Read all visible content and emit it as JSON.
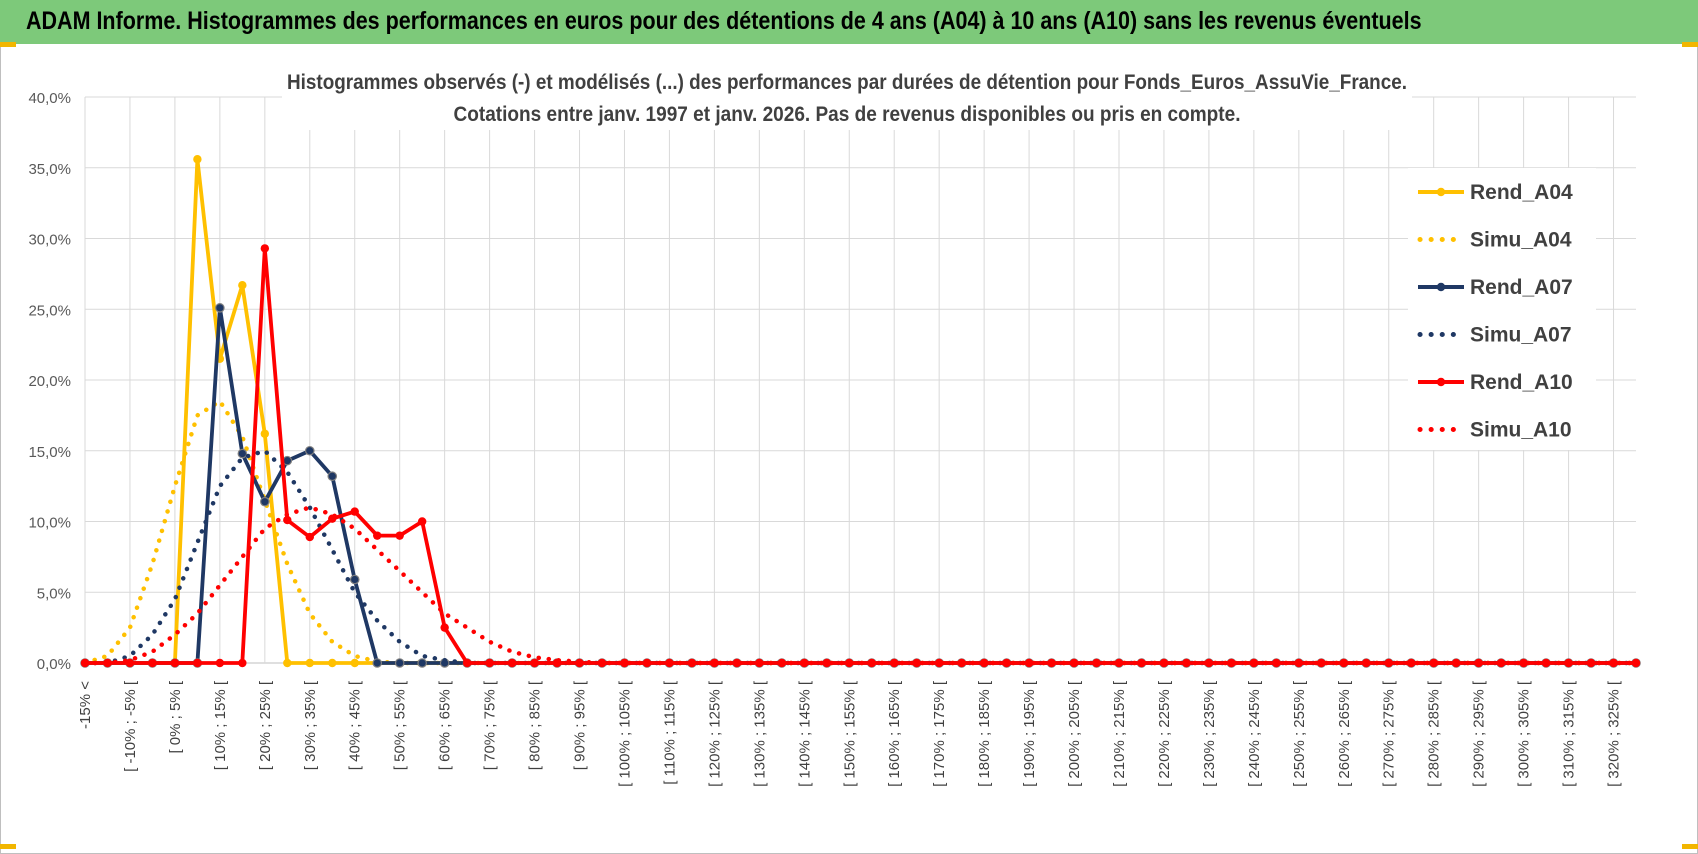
{
  "banner": {
    "title": "ADAM Informe. Histogrammes des performances en euros pour des détentions de 4 ans (A04) à 10 ans (A10) sans les revenus éventuels"
  },
  "chart_data": {
    "type": "line",
    "title": "Histogrammes observés (-) et modélisés (...) des performances par durées de détention pour Fonds_Euros_AssuVie_France.",
    "subtitle": "Cotations entre janv. 1997 et janv. 2026. Pas de revenus disponibles ou pris en compte.",
    "xlabel": "",
    "ylabel": "",
    "ylim": [
      0,
      40
    ],
    "y_ticks": [
      "0,0%",
      "5,0%",
      "10,0%",
      "15,0%",
      "20,0%",
      "25,0%",
      "30,0%",
      "35,0%",
      "40,0%"
    ],
    "grid": true,
    "legend_position": "right",
    "x_tick_labels": [
      "-15% <",
      "[ -10% ; -5% [",
      "[ 0% ; 5% [",
      "[ 10% ; 15% [",
      "[ 20% ; 25% [",
      "[ 30% ; 35% [",
      "[ 40% ; 45% [",
      "[ 50% ; 55% [",
      "[ 60% ; 65% [",
      "[ 70% ; 75% [",
      "[ 80% ; 85% [",
      "[ 90% ; 95% [",
      "[ 100% ; 105% [",
      "[ 110% ; 115% [",
      "[ 120% ; 125% [",
      "[ 130% ; 135% [",
      "[ 140% ; 145% [",
      "[ 150% ; 155% [",
      "[ 160% ; 165% [",
      "[ 170% ; 175% [",
      "[ 180% ; 185% [",
      "[ 190% ; 195% [",
      "[ 200% ; 205% [",
      "[ 210% ; 215% [",
      "[ 220% ; 225% [",
      "[ 230% ; 235% [",
      "[ 240% ; 245% [",
      "[ 250% ; 255% [",
      "[ 260% ; 265% [",
      "[ 270% ; 275% [",
      "[ 280% ; 285% [",
      "[ 290% ; 295% [",
      "[ 300% ; 305% [",
      "[ 310% ; 315% [",
      "[ 320% ; 325% ["
    ],
    "series": [
      {
        "name": "Rend_A04",
        "color": "#ffc000",
        "style": "solid",
        "markers": true,
        "values": [
          0,
          0,
          0,
          0,
          0,
          35.6,
          21.5,
          26.7,
          16.2,
          0,
          0,
          0,
          0,
          0,
          0,
          0,
          0,
          0,
          0,
          0,
          0,
          0,
          0,
          0,
          0,
          0,
          0,
          0,
          0,
          0,
          0,
          0,
          0,
          0,
          0,
          0,
          0,
          0,
          0,
          0,
          0,
          0,
          0,
          0,
          0,
          0,
          0,
          0,
          0,
          0,
          0,
          0,
          0,
          0,
          0,
          0,
          0,
          0,
          0,
          0,
          0,
          0,
          0,
          0,
          0,
          0,
          0,
          0,
          0,
          0
        ]
      },
      {
        "name": "Simu_A04",
        "color": "#ffc000",
        "style": "dotted",
        "markers": false,
        "values": [
          0,
          0.5,
          2.5,
          7,
          12.5,
          17.5,
          18.5,
          16,
          11.5,
          7,
          3.5,
          1.5,
          0.5,
          0.1,
          0,
          0,
          0,
          0,
          0,
          0,
          0,
          0,
          0,
          0,
          0,
          0,
          0,
          0,
          0,
          0,
          0,
          0,
          0,
          0,
          0,
          0,
          0,
          0,
          0,
          0,
          0,
          0,
          0,
          0,
          0,
          0,
          0,
          0,
          0,
          0,
          0,
          0,
          0,
          0,
          0,
          0,
          0,
          0,
          0,
          0,
          0,
          0,
          0,
          0,
          0,
          0,
          0,
          0,
          0,
          0
        ]
      },
      {
        "name": "Rend_A07",
        "color": "#1f3864",
        "style": "solid",
        "markers": true,
        "values": [
          0,
          0,
          0,
          0,
          0,
          0,
          25.1,
          14.8,
          11.4,
          14.3,
          15,
          13.2,
          5.9,
          0,
          0,
          0,
          0,
          0,
          0,
          0,
          0,
          0,
          0,
          0,
          0,
          0,
          0,
          0,
          0,
          0,
          0,
          0,
          0,
          0,
          0,
          0,
          0,
          0,
          0,
          0,
          0,
          0,
          0,
          0,
          0,
          0,
          0,
          0,
          0,
          0,
          0,
          0,
          0,
          0,
          0,
          0,
          0,
          0,
          0,
          0,
          0,
          0,
          0,
          0,
          0,
          0,
          0,
          0,
          0,
          0
        ]
      },
      {
        "name": "Simu_A07",
        "color": "#1f3864",
        "style": "dotted",
        "markers": false,
        "values": [
          0,
          0,
          0.5,
          2,
          4.5,
          8.5,
          12.5,
          14.5,
          15,
          13.5,
          11,
          8,
          5,
          3,
          1.5,
          0.5,
          0.2,
          0,
          0,
          0,
          0,
          0,
          0,
          0,
          0,
          0,
          0,
          0,
          0,
          0,
          0,
          0,
          0,
          0,
          0,
          0,
          0,
          0,
          0,
          0,
          0,
          0,
          0,
          0,
          0,
          0,
          0,
          0,
          0,
          0,
          0,
          0,
          0,
          0,
          0,
          0,
          0,
          0,
          0,
          0,
          0,
          0,
          0,
          0,
          0,
          0,
          0,
          0,
          0,
          0
        ]
      },
      {
        "name": "Rend_A10",
        "color": "#ff0000",
        "style": "solid",
        "markers": true,
        "values": [
          0,
          0,
          0,
          0,
          0,
          0,
          0,
          0,
          29.3,
          10.1,
          8.9,
          10.2,
          10.7,
          9,
          9,
          10,
          2.5,
          0,
          0,
          0,
          0,
          0,
          0,
          0,
          0,
          0,
          0,
          0,
          0,
          0,
          0,
          0,
          0,
          0,
          0,
          0,
          0,
          0,
          0,
          0,
          0,
          0,
          0,
          0,
          0,
          0,
          0,
          0,
          0,
          0,
          0,
          0,
          0,
          0,
          0,
          0,
          0,
          0,
          0,
          0,
          0,
          0,
          0,
          0,
          0,
          0,
          0,
          0,
          0,
          0
        ]
      },
      {
        "name": "Simu_A10",
        "color": "#ff0000",
        "style": "dotted",
        "markers": false,
        "values": [
          0,
          0,
          0.2,
          0.8,
          2,
          3.5,
          5.5,
          7.5,
          9.5,
          10.5,
          11,
          10.5,
          9.5,
          8,
          6.5,
          5,
          3.5,
          2.5,
          1.5,
          0.8,
          0.4,
          0.2,
          0.1,
          0,
          0,
          0,
          0,
          0,
          0,
          0,
          0,
          0,
          0,
          0,
          0,
          0,
          0,
          0,
          0,
          0,
          0,
          0,
          0,
          0,
          0,
          0,
          0,
          0,
          0,
          0,
          0,
          0,
          0,
          0,
          0,
          0,
          0,
          0,
          0,
          0,
          0,
          0,
          0,
          0,
          0,
          0,
          0,
          0,
          0,
          0
        ]
      }
    ]
  }
}
